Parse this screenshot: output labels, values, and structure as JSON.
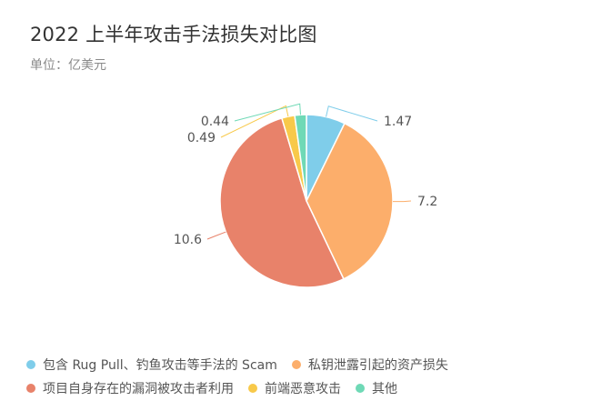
{
  "title": "2022 上半年攻击手法损失对比图",
  "subtitle": "单位：亿美元",
  "chart_data": {
    "type": "pie",
    "title": "2022 上半年攻击手法损失对比图",
    "unit": "单位：亿美元",
    "legend_position": "bottom-left",
    "slices": [
      {
        "label": "包含 Rug Pull、钓鱼攻击等手法的 Scam",
        "value": 1.47,
        "value_label": "1.47",
        "color": "#7fcdea"
      },
      {
        "label": "私钥泄露引起的资产损失",
        "value": 7.2,
        "value_label": "7.2",
        "color": "#fcae6b"
      },
      {
        "label": "项目自身存在的漏洞被攻击者利用",
        "value": 10.6,
        "value_label": "10.6",
        "color": "#e8826a"
      },
      {
        "label": "前端恶意攻击",
        "value": 0.49,
        "value_label": "0.49",
        "color": "#f8c94a"
      },
      {
        "label": "其他",
        "value": 0.44,
        "value_label": "0.44",
        "color": "#6fd9b6"
      }
    ]
  }
}
